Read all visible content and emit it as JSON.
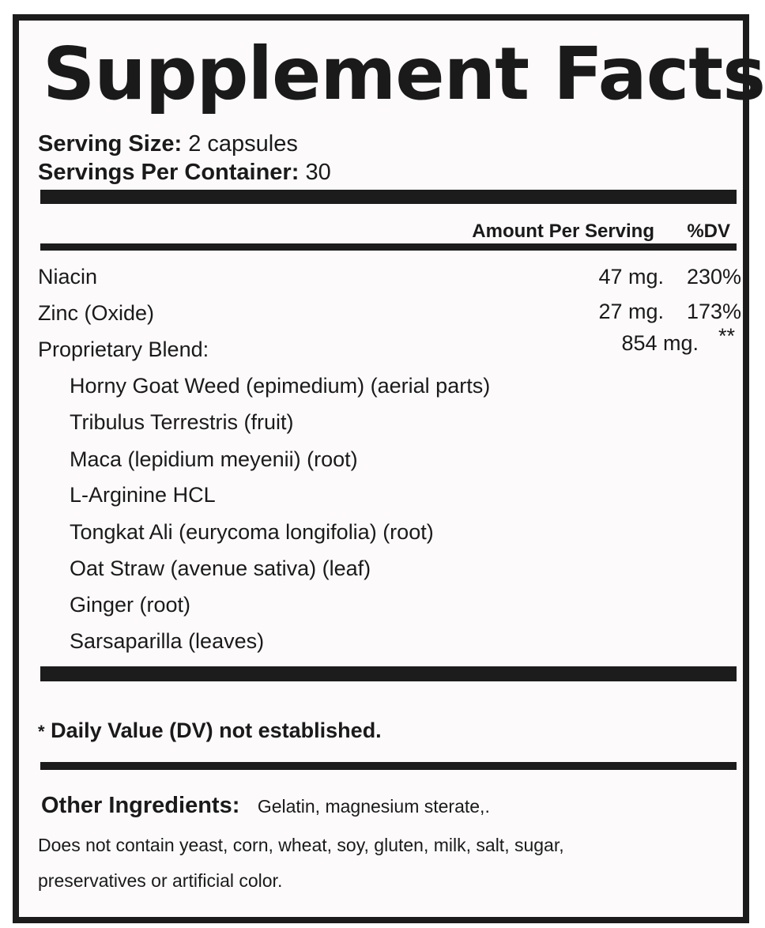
{
  "title": "Supplement Facts",
  "serving": {
    "size_label": "Serving Size:",
    "size_value": "2 capsules",
    "per_container_label": "Servings Per Container:",
    "per_container_value": "30"
  },
  "header": {
    "amount": "Amount Per Serving",
    "dv": "%DV"
  },
  "nutrients": [
    {
      "name": "Niacin",
      "amount": "47 mg.",
      "dv": "230%"
    },
    {
      "name": "Zinc (Oxide)",
      "amount": "27 mg.",
      "dv": "173%"
    },
    {
      "name": "Proprietary Blend:",
      "amount": "854 mg.",
      "dv": "**"
    }
  ],
  "blend": [
    "Horny Goat Weed (epimedium) (aerial parts)",
    "Tribulus Terrestris (fruit)",
    "Maca (lepidium meyenii) (root)",
    "L-Arginine HCL",
    "Tongkat Ali (eurycoma longifolia) (root)",
    "Oat Straw (avenue sativa) (leaf)",
    "Ginger (root)",
    "Sarsaparilla (leaves)"
  ],
  "footnote": {
    "star": "*",
    "text": "Daily Value (DV) not established."
  },
  "other": {
    "label": "Other Ingredients:",
    "value": "Gelatin, magnesium sterate,.",
    "line1": "Does not contain yeast, corn, wheat, soy, gluten, milk, salt, sugar,",
    "line2": "preservatives or artificial color."
  }
}
